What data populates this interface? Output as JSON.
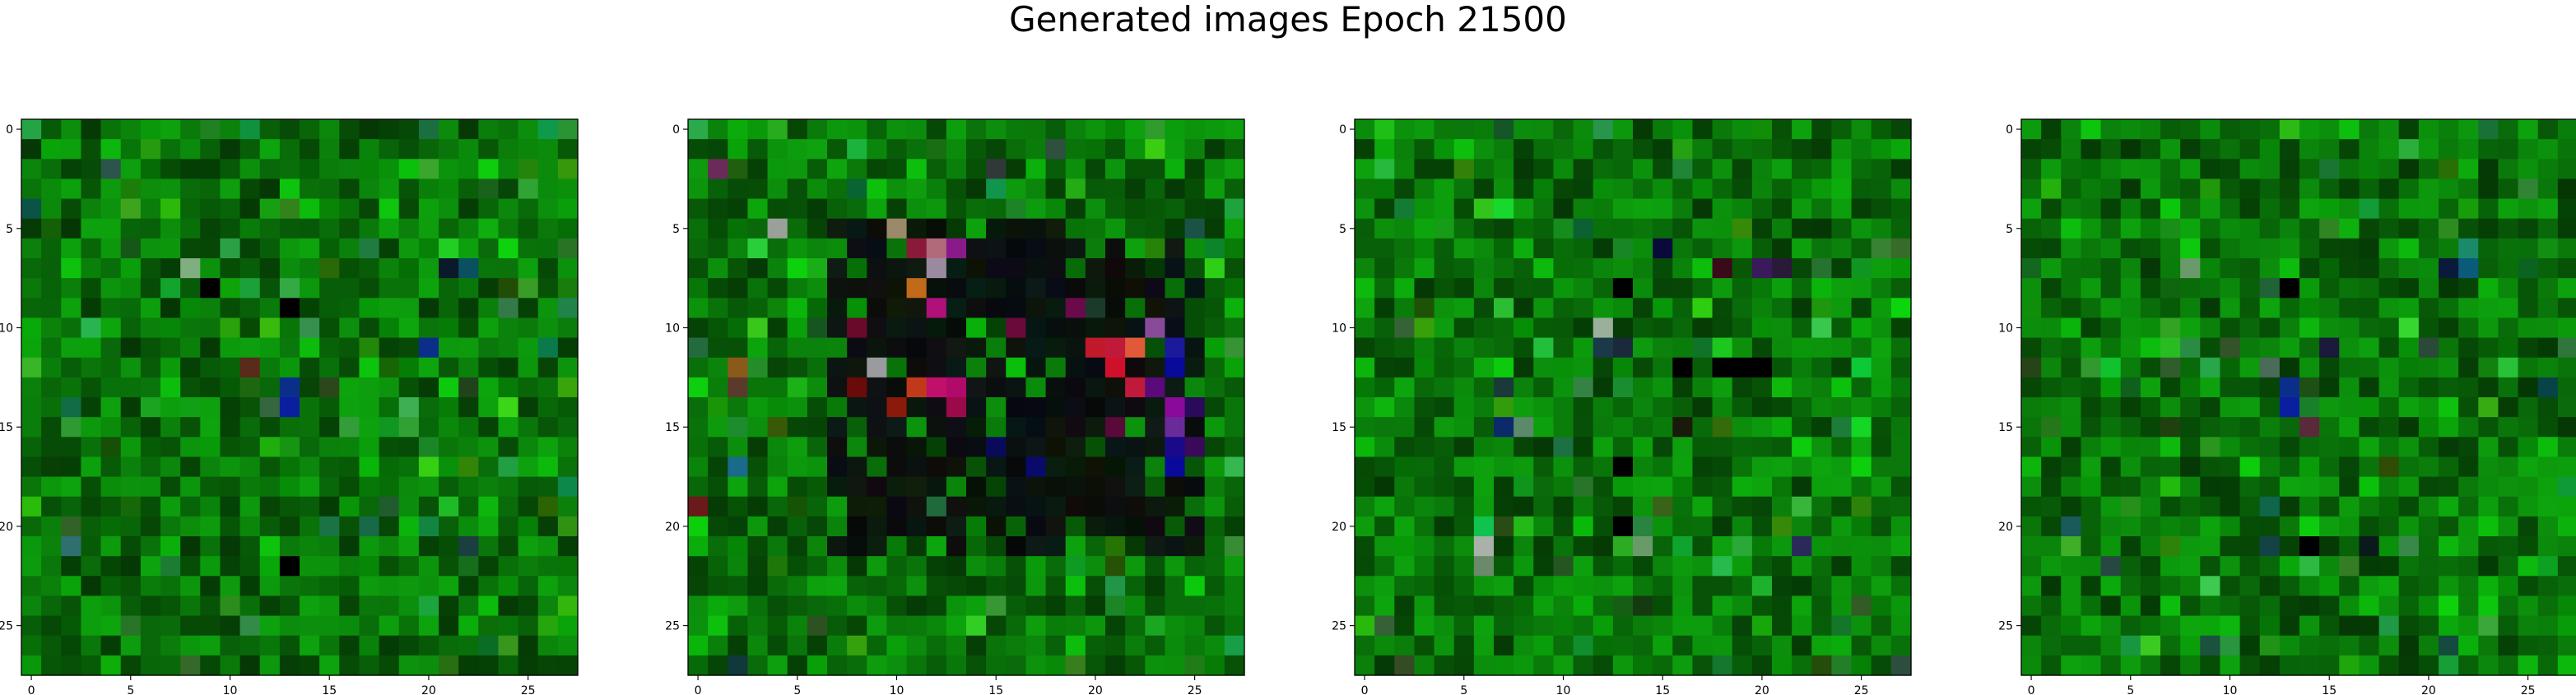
{
  "title": "Generated images Epoch 21500",
  "chart_data": [
    {
      "type": "heatmap",
      "xlim": [
        -0.5,
        27.5
      ],
      "ylim": [
        27.5,
        -0.5
      ],
      "xticks": [
        0,
        5,
        10,
        15,
        20,
        25
      ],
      "yticks": [
        0,
        5,
        10,
        15,
        20,
        25
      ],
      "grid": false,
      "grid_size": [
        28,
        28
      ],
      "dominant_color": "#0a7a0a",
      "notable_pixels": [
        {
          "x": 13,
          "y": 14,
          "color": "#0a1fa0"
        },
        {
          "x": 13,
          "y": 13,
          "color": "#0a2f8a"
        },
        {
          "x": 11,
          "y": 12,
          "color": "#5a2a1a"
        },
        {
          "x": 8,
          "y": 7,
          "color": "#7fae7f"
        },
        {
          "x": 22,
          "y": 7,
          "color": "#0a5060"
        },
        {
          "x": 21,
          "y": 7,
          "color": "#0a1a2a"
        },
        {
          "x": 2,
          "y": 21,
          "color": "#2f6f6f"
        },
        {
          "x": 9,
          "y": 8,
          "color": "#000000"
        },
        {
          "x": 13,
          "y": 22,
          "color": "#000000"
        },
        {
          "x": 13,
          "y": 9,
          "color": "#000000"
        },
        {
          "x": 22,
          "y": 21,
          "color": "#1a3f3f"
        },
        {
          "x": 20,
          "y": 11,
          "color": "#0a2f8a"
        }
      ]
    },
    {
      "type": "heatmap",
      "xlim": [
        -0.5,
        27.5
      ],
      "ylim": [
        27.5,
        -0.5
      ],
      "xticks": [
        0,
        5,
        10,
        15,
        20,
        25
      ],
      "yticks": [
        0,
        5,
        10,
        15,
        20,
        25
      ],
      "grid": false,
      "grid_size": [
        28,
        28
      ],
      "dominant_color": "#0a7a0a",
      "dark_region": {
        "x": [
          7,
          25
        ],
        "y": [
          5,
          21
        ],
        "color": "#050805"
      },
      "notable_pixels": [
        {
          "x": 10,
          "y": 5,
          "color": "#9a8a6a"
        },
        {
          "x": 11,
          "y": 6,
          "color": "#8a1a3a"
        },
        {
          "x": 12,
          "y": 6,
          "color": "#b06a7a"
        },
        {
          "x": 12,
          "y": 7,
          "color": "#9a8aa0"
        },
        {
          "x": 13,
          "y": 6,
          "color": "#8a1a8a"
        },
        {
          "x": 11,
          "y": 8,
          "color": "#c06a1a"
        },
        {
          "x": 12,
          "y": 9,
          "color": "#b0107a"
        },
        {
          "x": 8,
          "y": 10,
          "color": "#6a0a2a"
        },
        {
          "x": 14,
          "y": 10,
          "color": "#0ab00a"
        },
        {
          "x": 16,
          "y": 10,
          "color": "#6a0a3a"
        },
        {
          "x": 20,
          "y": 11,
          "color": "#c01a2a"
        },
        {
          "x": 21,
          "y": 11,
          "color": "#c01a3a"
        },
        {
          "x": 22,
          "y": 11,
          "color": "#e05a3a"
        },
        {
          "x": 23,
          "y": 10,
          "color": "#8a4a9a"
        },
        {
          "x": 24,
          "y": 11,
          "color": "#1a1a9a"
        },
        {
          "x": 21,
          "y": 12,
          "color": "#d0102a"
        },
        {
          "x": 22,
          "y": 13,
          "color": "#c01a3a"
        },
        {
          "x": 23,
          "y": 13,
          "color": "#5a0a7a"
        },
        {
          "x": 24,
          "y": 12,
          "color": "#0a0a9a"
        },
        {
          "x": 9,
          "y": 12,
          "color": "#9a9aa0"
        },
        {
          "x": 11,
          "y": 13,
          "color": "#c03a1a"
        },
        {
          "x": 13,
          "y": 13,
          "color": "#b00a6a"
        },
        {
          "x": 12,
          "y": 13,
          "color": "#c0106a"
        },
        {
          "x": 8,
          "y": 13,
          "color": "#6a0a0a"
        },
        {
          "x": 10,
          "y": 14,
          "color": "#8a1a0a"
        },
        {
          "x": 13,
          "y": 14,
          "color": "#9a0a4a"
        },
        {
          "x": 24,
          "y": 14,
          "color": "#8a0a9a"
        },
        {
          "x": 24,
          "y": 15,
          "color": "#6a2a9a"
        },
        {
          "x": 24,
          "y": 16,
          "color": "#1a0a8a"
        },
        {
          "x": 24,
          "y": 17,
          "color": "#0a0a9a"
        },
        {
          "x": 17,
          "y": 17,
          "color": "#0a0a6a"
        },
        {
          "x": 15,
          "y": 16,
          "color": "#0a0a5a"
        },
        {
          "x": 21,
          "y": 15,
          "color": "#5a0a3a"
        },
        {
          "x": 19,
          "y": 9,
          "color": "#6a0a4a"
        },
        {
          "x": 20,
          "y": 9,
          "color": "#1a3a2a"
        },
        {
          "x": 4,
          "y": 5,
          "color": "#9aa09a"
        },
        {
          "x": 1,
          "y": 2,
          "color": "#6a2a5a"
        },
        {
          "x": 0,
          "y": 0,
          "color": "#2aaa4a"
        },
        {
          "x": 0,
          "y": 19,
          "color": "#6a1a1a"
        },
        {
          "x": 2,
          "y": 17,
          "color": "#1a6a8a"
        },
        {
          "x": 2,
          "y": 12,
          "color": "#8a5a1a"
        },
        {
          "x": 2,
          "y": 13,
          "color": "#5a3a2a"
        },
        {
          "x": 25,
          "y": 16,
          "color": "#3a0a5a"
        },
        {
          "x": 25,
          "y": 14,
          "color": "#2a0a5a"
        }
      ]
    },
    {
      "type": "heatmap",
      "xlim": [
        -0.5,
        27.5
      ],
      "ylim": [
        27.5,
        -0.5
      ],
      "xticks": [
        0,
        5,
        10,
        15,
        20,
        25
      ],
      "yticks": [
        0,
        5,
        10,
        15,
        20,
        25
      ],
      "grid": false,
      "grid_size": [
        28,
        28
      ],
      "dominant_color": "#0a7a0a",
      "notable_pixels": [
        {
          "x": 15,
          "y": 6,
          "color": "#0a0a3a"
        },
        {
          "x": 18,
          "y": 7,
          "color": "#3a0a1a"
        },
        {
          "x": 20,
          "y": 7,
          "color": "#3a1a5a"
        },
        {
          "x": 21,
          "y": 7,
          "color": "#2a1a3a"
        },
        {
          "x": 12,
          "y": 10,
          "color": "#9ab09a"
        },
        {
          "x": 12,
          "y": 11,
          "color": "#1a3a4a"
        },
        {
          "x": 13,
          "y": 11,
          "color": "#1a2a3a"
        },
        {
          "x": 16,
          "y": 12,
          "color": "#000000"
        },
        {
          "x": 18,
          "y": 12,
          "color": "#000000"
        },
        {
          "x": 19,
          "y": 12,
          "color": "#000000"
        },
        {
          "x": 20,
          "y": 12,
          "color": "#000000"
        },
        {
          "x": 7,
          "y": 15,
          "color": "#0a2a6a"
        },
        {
          "x": 8,
          "y": 15,
          "color": "#5a8a6a"
        },
        {
          "x": 6,
          "y": 21,
          "color": "#aab0aa"
        },
        {
          "x": 6,
          "y": 22,
          "color": "#6a8a6a"
        },
        {
          "x": 14,
          "y": 21,
          "color": "#6a9a6a"
        },
        {
          "x": 7,
          "y": 13,
          "color": "#1a3a3a"
        },
        {
          "x": 13,
          "y": 8,
          "color": "#000000"
        },
        {
          "x": 13,
          "y": 17,
          "color": "#000000"
        },
        {
          "x": 13,
          "y": 20,
          "color": "#000000"
        },
        {
          "x": 16,
          "y": 15,
          "color": "#1a1a0a"
        },
        {
          "x": 22,
          "y": 21,
          "color": "#2a2a5a"
        }
      ]
    },
    {
      "type": "heatmap",
      "xlim": [
        -0.5,
        27.5
      ],
      "ylim": [
        27.5,
        -0.5
      ],
      "xticks": [
        0,
        5,
        10,
        15,
        20,
        25
      ],
      "yticks": [
        0,
        5,
        10,
        15,
        20,
        25
      ],
      "grid": false,
      "grid_size": [
        28,
        28
      ],
      "dominant_color": "#0a7a0a",
      "notable_pixels": [
        {
          "x": 13,
          "y": 14,
          "color": "#0a1fa0"
        },
        {
          "x": 13,
          "y": 13,
          "color": "#0a2f8a"
        },
        {
          "x": 14,
          "y": 15,
          "color": "#5a2a3a"
        },
        {
          "x": 21,
          "y": 7,
          "color": "#0a1a3a"
        },
        {
          "x": 22,
          "y": 7,
          "color": "#0a5a7a"
        },
        {
          "x": 22,
          "y": 6,
          "color": "#1a8a6a"
        },
        {
          "x": 8,
          "y": 7,
          "color": "#6a9a6a"
        },
        {
          "x": 2,
          "y": 20,
          "color": "#1a5a5a"
        },
        {
          "x": 12,
          "y": 12,
          "color": "#4a6a5a"
        },
        {
          "x": 15,
          "y": 11,
          "color": "#1a1a3a"
        },
        {
          "x": 14,
          "y": 21,
          "color": "#000000"
        },
        {
          "x": 13,
          "y": 8,
          "color": "#000000"
        },
        {
          "x": 17,
          "y": 21,
          "color": "#0a1a1a"
        }
      ]
    }
  ]
}
